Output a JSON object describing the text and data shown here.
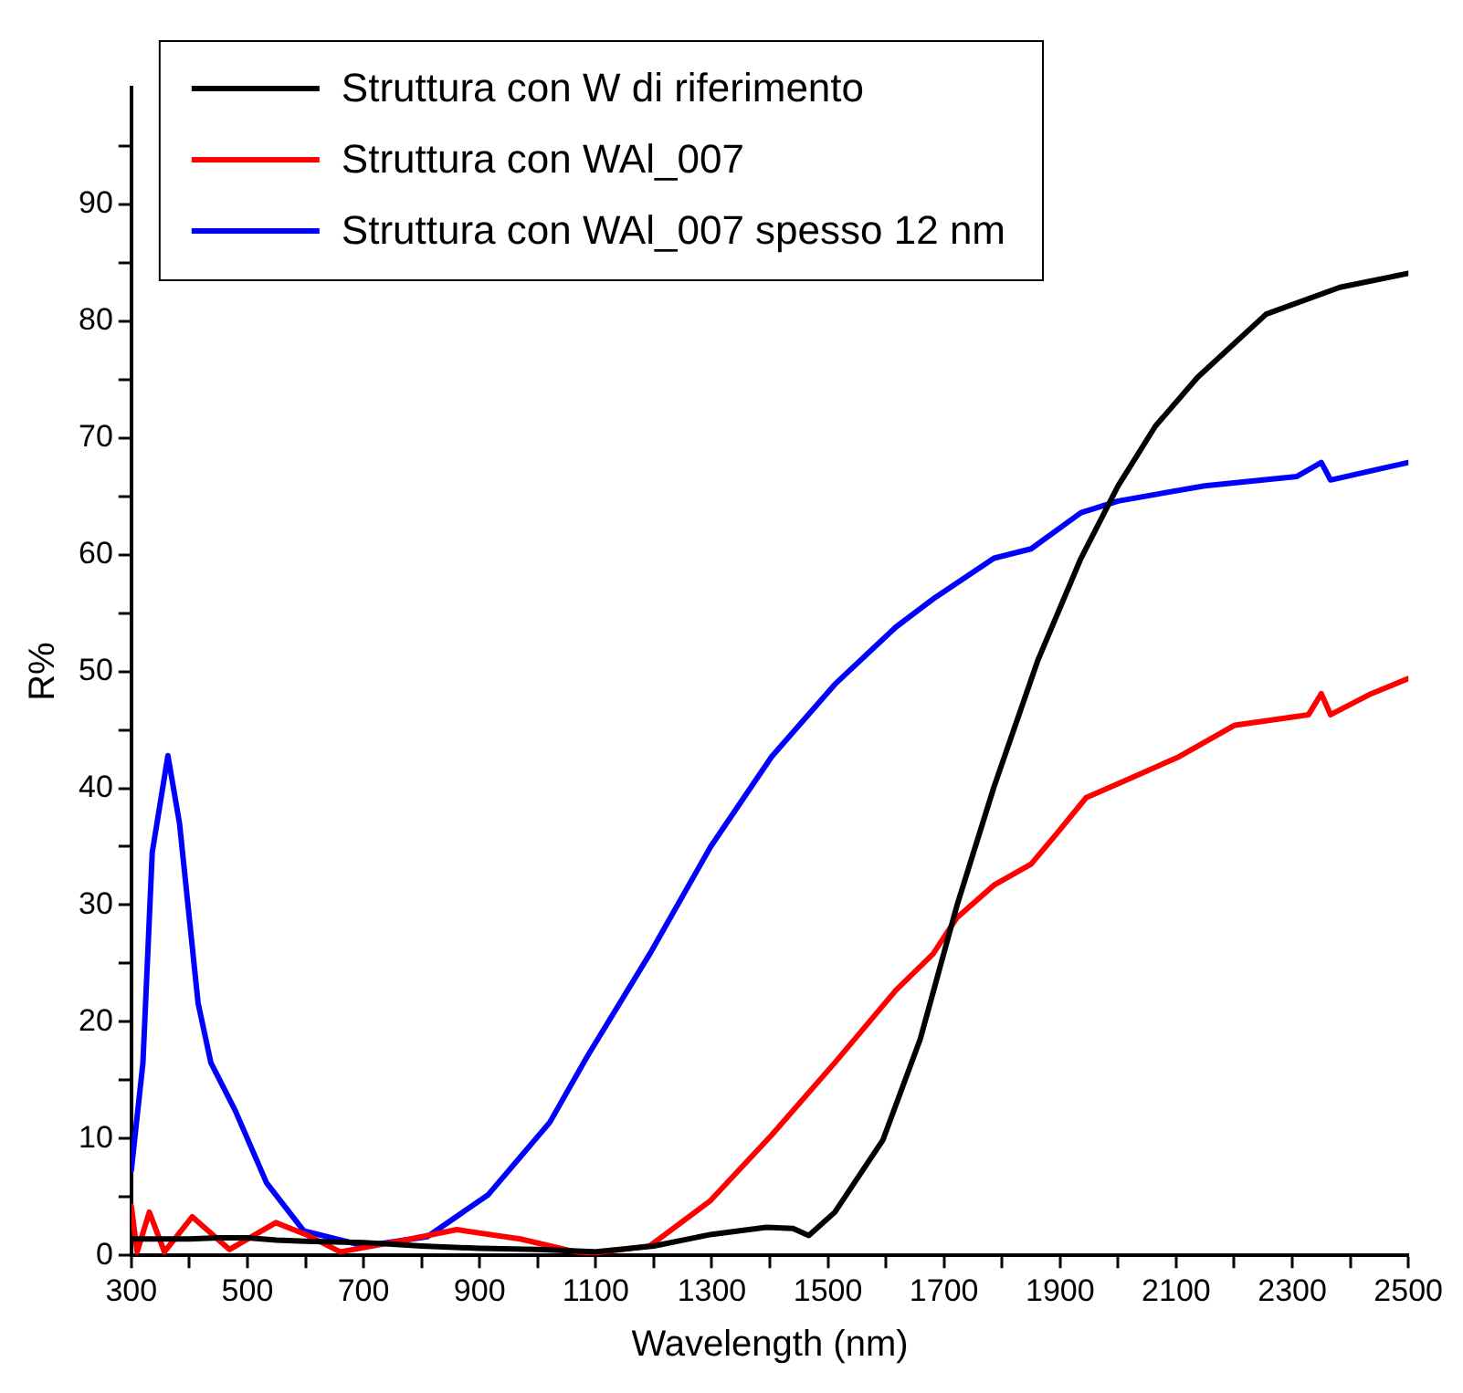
{
  "chart_data": {
    "type": "line",
    "xlabel": "Wavelength (nm)",
    "ylabel": "R%",
    "xlim": [
      300,
      2500
    ],
    "ylim": [
      0,
      100
    ],
    "xticks": [
      300,
      {
        "value": 400,
        "label": null
      },
      500,
      {
        "value": 600,
        "label": null
      },
      700,
      {
        "value": 800,
        "label": null
      },
      900,
      {
        "value": 1000,
        "label": null
      },
      1100,
      {
        "value": 1200,
        "label": null
      },
      1300,
      {
        "value": 1400,
        "label": null
      },
      1500,
      {
        "value": 1600,
        "label": null
      },
      1700,
      {
        "value": 1800,
        "label": null
      },
      1900,
      {
        "value": 2000,
        "label": null
      },
      2100,
      {
        "value": 2200,
        "label": null
      },
      2300,
      {
        "value": 2400,
        "label": null
      },
      2500
    ],
    "yticks": [
      0,
      {
        "value": 5,
        "label": null
      },
      10,
      {
        "value": 15,
        "label": null
      },
      20,
      {
        "value": 25,
        "label": null
      },
      30,
      {
        "value": 35,
        "label": null
      },
      40,
      {
        "value": 45,
        "label": null
      },
      50,
      {
        "value": 55,
        "label": null
      },
      60,
      {
        "value": 65,
        "label": null
      },
      70,
      {
        "value": 75,
        "label": null
      },
      80,
      {
        "value": 85,
        "label": null
      },
      90,
      {
        "value": 95,
        "label": null
      }
    ],
    "legend": "top left",
    "marker": "none",
    "line_style": "solid",
    "series": [
      {
        "name": "Struttura con W di riferimento",
        "color": "#000000",
        "x": [
          300,
          350,
          400,
          450,
          500,
          550,
          600,
          700,
          800,
          900,
          1000,
          1097,
          1200,
          1300,
          1394,
          1440,
          1467,
          1512,
          1595,
          1659,
          1722,
          1786,
          1862,
          1936,
          2000,
          2064,
          2137,
          2255,
          2382,
          2500
        ],
        "values": [
          1.4,
          1.4,
          1.4,
          1.5,
          1.5,
          1.3,
          1.2,
          1.1,
          0.8,
          0.6,
          0.5,
          0.3,
          0.8,
          1.8,
          2.4,
          2.3,
          1.7,
          3.7,
          9.9,
          18.5,
          29.9,
          40.1,
          51,
          59.7,
          65.9,
          71,
          75.2,
          80.6,
          82.9,
          84.1
        ]
      },
      {
        "name": "Struttura con WAl_007",
        "color": "#ff0000",
        "x": [
          300,
          310,
          331,
          357,
          405,
          469,
          549,
          600,
          660,
          760,
          861,
          970,
          1065,
          1097,
          1193,
          1298,
          1403,
          1512,
          1617,
          1681,
          1722,
          1786,
          1850,
          1894,
          1945,
          2000,
          2105,
          2201,
          2328,
          2350,
          2366,
          2436,
          2500
        ],
        "values": [
          4.2,
          0.3,
          3.7,
          0.3,
          3.3,
          0.5,
          2.8,
          1.8,
          0.3,
          1.2,
          2.2,
          1.4,
          0.3,
          0.2,
          0.8,
          4.7,
          10.3,
          16.5,
          22.7,
          25.8,
          28.9,
          31.7,
          33.5,
          36.1,
          39.2,
          40.4,
          42.7,
          45.4,
          46.3,
          48.1,
          46.3,
          48.1,
          49.4
        ]
      },
      {
        "name": "Struttura con WAl_007 spesso 12 nm",
        "color": "#0000ff",
        "x": [
          300,
          320,
          336,
          363,
          383,
          415,
          437,
          479,
          533,
          597,
          702,
          810,
          915,
          1021,
          1085,
          1193,
          1298,
          1403,
          1512,
          1617,
          1681,
          1786,
          1850,
          1936,
          2000,
          2149,
          2308,
          2350,
          2366,
          2500
        ],
        "values": [
          7.3,
          16.5,
          34.5,
          42.8,
          37,
          21.6,
          16.5,
          12.4,
          6.2,
          2.1,
          0.8,
          1.6,
          5.2,
          11.4,
          17,
          25.8,
          35,
          42.7,
          48.9,
          53.8,
          56.2,
          59.7,
          60.5,
          63.6,
          64.6,
          65.9,
          66.7,
          67.9,
          66.4,
          67.9
        ]
      }
    ]
  }
}
